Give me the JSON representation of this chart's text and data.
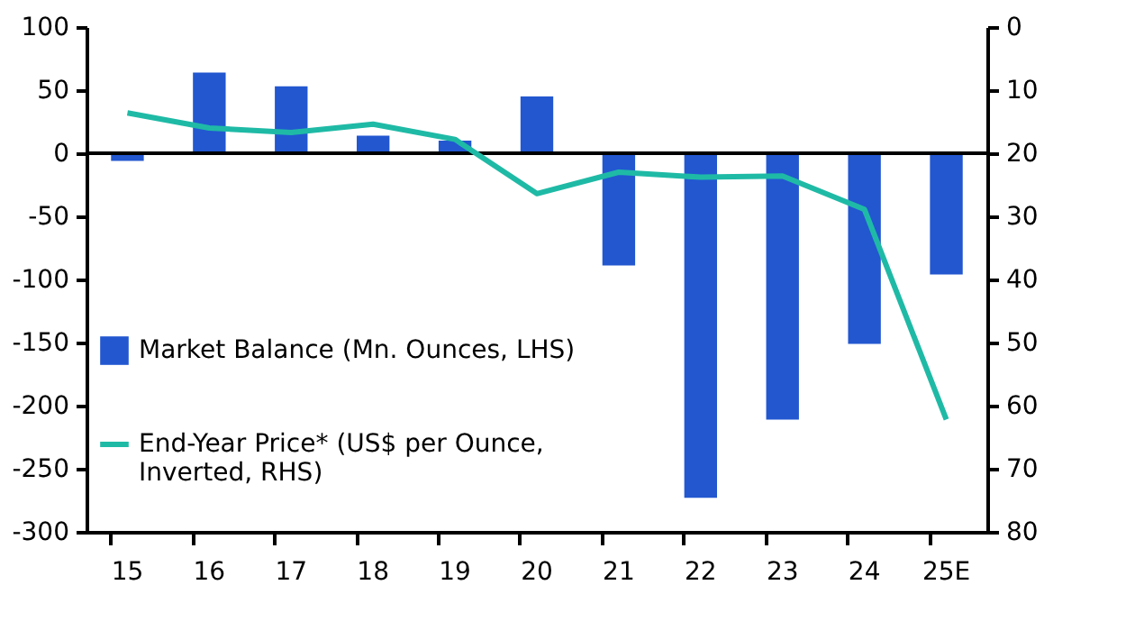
{
  "chart_data": {
    "type": "bar",
    "categories": [
      "15",
      "16",
      "17",
      "18",
      "19",
      "20",
      "21",
      "22",
      "23",
      "24",
      "25E"
    ],
    "series": [
      {
        "name": "Market Balance (Mn. Ounces, LHS)",
        "color": "#2257d0",
        "values": [
          -6,
          64,
          53,
          14,
          10,
          45,
          -89,
          -273,
          -211,
          -151,
          -96
        ]
      },
      {
        "name": "End-Year Price* (US$ per Ounce, Inverted, RHS)",
        "type": "line",
        "axis": "y2",
        "color": "#1fbaa6",
        "values": [
          13.6,
          16,
          16.7,
          15.4,
          17.8,
          26.4,
          23,
          23.8,
          23.6,
          28.9,
          62.2
        ]
      }
    ],
    "ylim": [
      -300,
      100
    ],
    "yticks": [
      -300,
      -250,
      -200,
      -150,
      -100,
      -50,
      0,
      50,
      100
    ],
    "y2lim": [
      80,
      0
    ],
    "y2ticks": [
      0,
      10,
      20,
      30,
      40,
      50,
      60,
      70,
      80
    ],
    "ref_lines": [
      {
        "axis": "y",
        "value": 0,
        "color": "#000000"
      }
    ],
    "grid": false,
    "legend": "left",
    "line_style": "solid",
    "marker": "none"
  }
}
